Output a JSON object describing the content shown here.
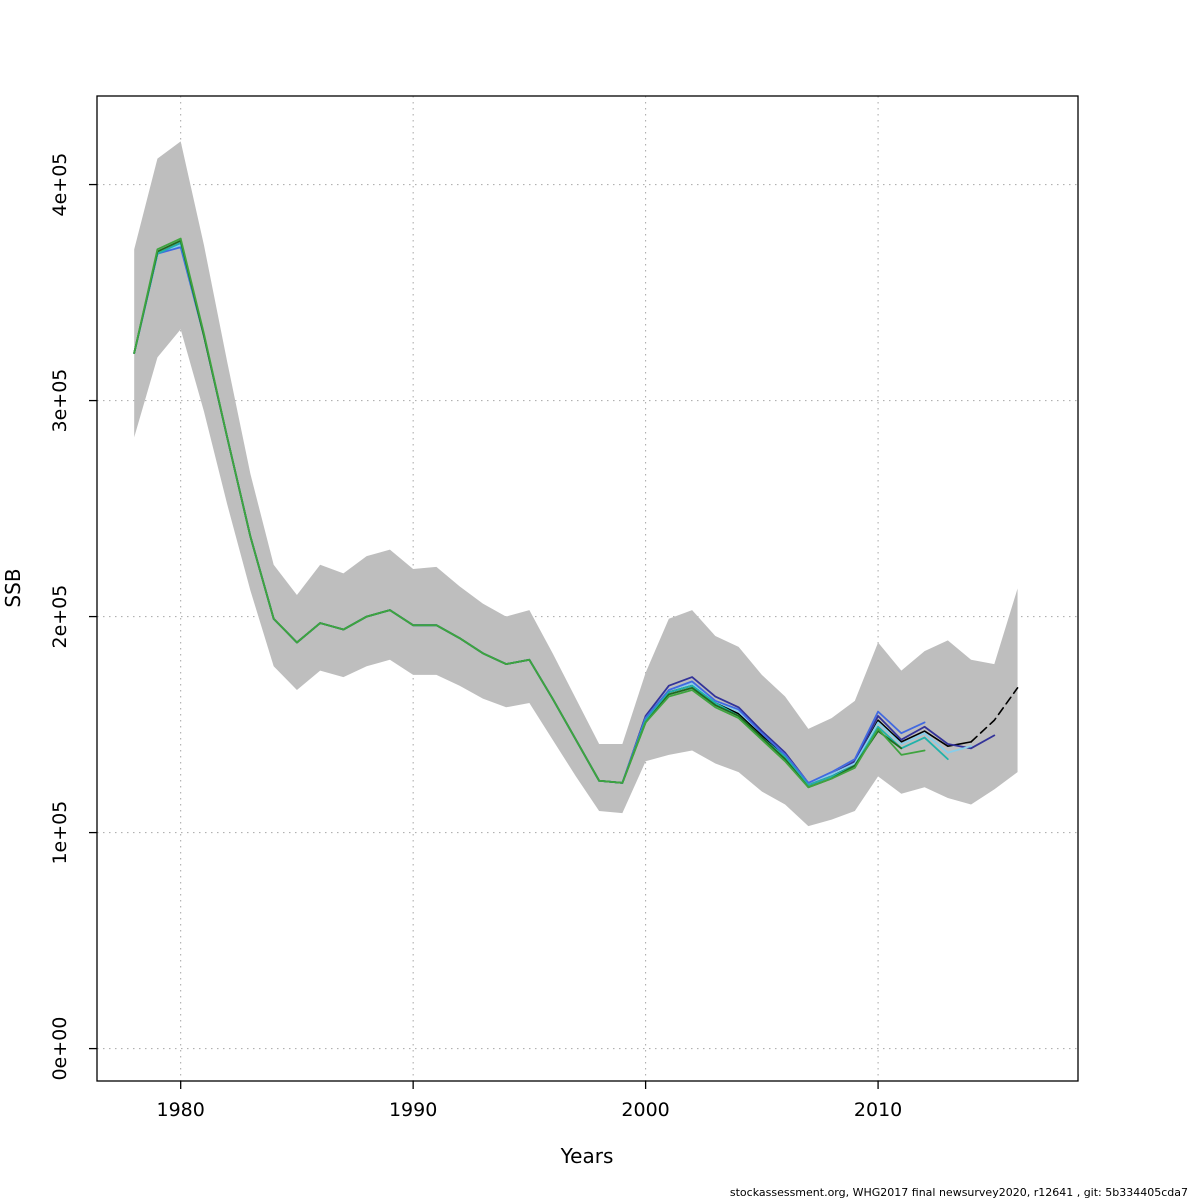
{
  "footer": {
    "text": "stockassessment.org, WHG2017 final newsurvey2020, r12641 , git: 5b334405cda7"
  },
  "chart_data": {
    "type": "line",
    "title": "",
    "xlabel": "Years",
    "ylabel": "SSB",
    "xlim": [
      1976.4,
      2018.6
    ],
    "ylim": [
      -15000,
      441000
    ],
    "x_ticks": [
      1980,
      1990,
      2000,
      2010
    ],
    "x_tick_labels": [
      "1980",
      "1990",
      "2000",
      "2010"
    ],
    "y_ticks": [
      0,
      100000,
      200000,
      300000,
      400000
    ],
    "y_tick_labels": [
      "0e+00",
      "1e+05",
      "2e+05",
      "3e+05",
      "4e+05"
    ],
    "grid": true,
    "legend": "none",
    "band": {
      "name": "confidence-band",
      "color": "#BEBEBE",
      "years_start": 1978,
      "upper": [
        370000,
        412000,
        420000,
        372000,
        318000,
        266000,
        224000,
        210000,
        224000,
        220000,
        228000,
        231000,
        222000,
        223000,
        214000,
        206000,
        200000,
        203000,
        183000,
        162000,
        141000,
        141000,
        174000,
        199000,
        203000,
        191000,
        186000,
        173000,
        163000,
        148000,
        153000,
        161000,
        188000,
        175000,
        184000,
        189000,
        180000,
        178000,
        213000
      ],
      "lower": [
        283000,
        320000,
        333000,
        295000,
        252000,
        212000,
        177000,
        166000,
        175000,
        172000,
        177000,
        180000,
        173000,
        173000,
        168000,
        162000,
        158000,
        160000,
        143000,
        126000,
        110000,
        109000,
        133000,
        136000,
        138000,
        132000,
        128000,
        119000,
        113000,
        103000,
        106000,
        110000,
        126000,
        118000,
        121000,
        116000,
        113000,
        120000,
        128000
      ]
    },
    "series": [
      {
        "name": "final-run",
        "color": "#000000",
        "width": 1.6,
        "dashed": false,
        "years_start": 1978,
        "values": [
          322000,
          368000,
          373000,
          330000,
          283000,
          237000,
          199000,
          188000,
          197000,
          194000,
          200000,
          203000,
          196000,
          196000,
          190000,
          183000,
          178000,
          180000,
          162000,
          143000,
          124000,
          123000,
          152000,
          165000,
          168000,
          160000,
          155000,
          145000,
          135000,
          122000,
          126000,
          132000,
          152000,
          142000,
          147000,
          140000,
          142000
        ]
      },
      {
        "name": "forecast",
        "color": "#000000",
        "width": 1.6,
        "dashed": true,
        "years_start": 2014,
        "values": [
          142000,
          152000,
          167000
        ]
      },
      {
        "name": "retro-peel-2015",
        "color": "#333399",
        "width": 1.8,
        "dashed": false,
        "years_start": 1978,
        "values": [
          322000,
          368000,
          372000,
          330000,
          283000,
          237000,
          199000,
          188000,
          197000,
          194000,
          200000,
          203000,
          196000,
          196000,
          190000,
          183000,
          178000,
          180000,
          162000,
          143000,
          124000,
          123000,
          154000,
          168000,
          172000,
          163000,
          158000,
          147000,
          137000,
          123000,
          127000,
          133000,
          154000,
          143000,
          149000,
          141000,
          139000,
          145000
        ]
      },
      {
        "name": "retro-peel-2014",
        "color": "#87CEEB",
        "width": 1.8,
        "dashed": false,
        "years_start": 1978,
        "values": [
          322000,
          368000,
          372000,
          330000,
          283000,
          237000,
          199000,
          188000,
          197000,
          194000,
          200000,
          203000,
          196000,
          196000,
          190000,
          183000,
          178000,
          180000,
          162000,
          143000,
          124000,
          123000,
          153000,
          166000,
          169000,
          161000,
          156000,
          146000,
          136000,
          123000,
          127000,
          132000,
          151000,
          141000,
          146000,
          137000,
          140000
        ]
      },
      {
        "name": "retro-peel-2012-blue",
        "color": "#4169E1",
        "width": 1.8,
        "dashed": false,
        "years_start": 1978,
        "values": [
          322000,
          368000,
          371000,
          330000,
          283000,
          237000,
          199000,
          188000,
          197000,
          194000,
          200000,
          203000,
          196000,
          196000,
          190000,
          183000,
          178000,
          180000,
          162000,
          143000,
          124000,
          123000,
          153000,
          166000,
          170000,
          161000,
          157000,
          146000,
          136000,
          123000,
          128000,
          134000,
          156000,
          146000,
          151000
        ]
      },
      {
        "name": "retro-peel-2013-teal",
        "color": "#20B2AA",
        "width": 1.8,
        "dashed": false,
        "years_start": 1978,
        "values": [
          322000,
          368000,
          373000,
          330000,
          283000,
          237000,
          199000,
          188000,
          197000,
          194000,
          200000,
          203000,
          196000,
          196000,
          190000,
          183000,
          178000,
          180000,
          162000,
          143000,
          124000,
          123000,
          152000,
          165000,
          168000,
          160000,
          154000,
          144000,
          135000,
          122000,
          126000,
          131000,
          149000,
          139000,
          144000,
          134000
        ]
      },
      {
        "name": "retro-peel-2011-darkgreen",
        "color": "#1F6B1F",
        "width": 1.8,
        "dashed": false,
        "years_start": 1978,
        "values": [
          322000,
          369000,
          374000,
          330000,
          283000,
          237000,
          199000,
          188000,
          197000,
          194000,
          200000,
          203000,
          196000,
          196000,
          190000,
          183000,
          178000,
          180000,
          162000,
          143000,
          124000,
          123000,
          151000,
          164000,
          167000,
          159000,
          154000,
          144000,
          134000,
          121000,
          125000,
          131000,
          147000,
          139000
        ]
      },
      {
        "name": "retro-peel-2012-green",
        "color": "#3FA43F",
        "width": 1.8,
        "dashed": false,
        "years_start": 1978,
        "values": [
          322000,
          370000,
          375000,
          331000,
          283000,
          237000,
          199000,
          188000,
          197000,
          194000,
          200000,
          203000,
          196000,
          196000,
          190000,
          183000,
          178000,
          180000,
          162000,
          143000,
          124000,
          123000,
          151000,
          163000,
          166000,
          158000,
          153000,
          143000,
          133000,
          121000,
          125000,
          130000,
          148000,
          136000,
          138000
        ]
      }
    ]
  }
}
